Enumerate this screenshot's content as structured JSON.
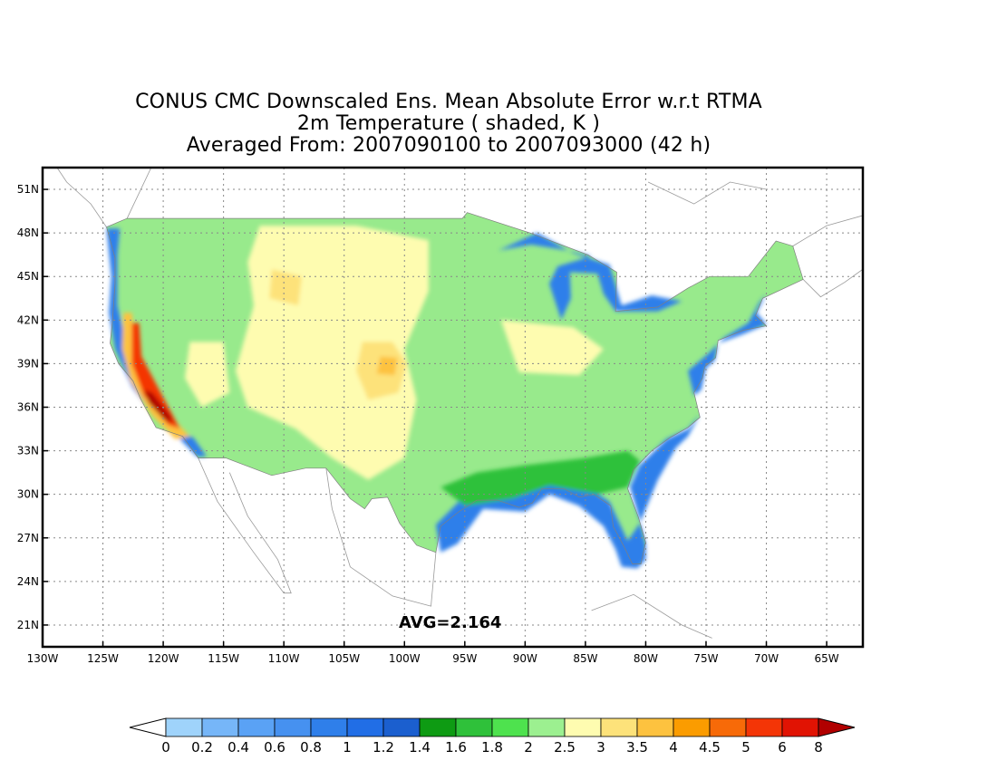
{
  "title": {
    "line1": "CONUS CMC Downscaled Ens. Mean Absolute Error w.r.t RTMA",
    "line2": "2m Temperature ( shaded, K )",
    "line3": "Averaged From: 2007090100 to 2007093000 (42 h)"
  },
  "annotation": {
    "avg_label": "AVG=2.164"
  },
  "axes": {
    "lon_range": [
      -130,
      -62
    ],
    "lat_range": [
      19.5,
      52.5
    ],
    "lon_ticks": [
      {
        "value": -130,
        "label": "130W"
      },
      {
        "value": -125,
        "label": "125W"
      },
      {
        "value": -120,
        "label": "120W"
      },
      {
        "value": -115,
        "label": "115W"
      },
      {
        "value": -110,
        "label": "110W"
      },
      {
        "value": -105,
        "label": "105W"
      },
      {
        "value": -100,
        "label": "100W"
      },
      {
        "value": -95,
        "label": "95W"
      },
      {
        "value": -90,
        "label": "90W"
      },
      {
        "value": -85,
        "label": "85W"
      },
      {
        "value": -80,
        "label": "80W"
      },
      {
        "value": -75,
        "label": "75W"
      },
      {
        "value": -70,
        "label": "70W"
      },
      {
        "value": -65,
        "label": "65W"
      }
    ],
    "lat_ticks": [
      {
        "value": 21,
        "label": "21N"
      },
      {
        "value": 24,
        "label": "24N"
      },
      {
        "value": 27,
        "label": "27N"
      },
      {
        "value": 30,
        "label": "30N"
      },
      {
        "value": 33,
        "label": "33N"
      },
      {
        "value": 36,
        "label": "36N"
      },
      {
        "value": 39,
        "label": "39N"
      },
      {
        "value": 42,
        "label": "42N"
      },
      {
        "value": 45,
        "label": "45N"
      },
      {
        "value": 48,
        "label": "48N"
      },
      {
        "value": 51,
        "label": "51N"
      }
    ],
    "grid": true
  },
  "colorbar": {
    "labels": [
      "0",
      "0.2",
      "0.4",
      "0.6",
      "0.8",
      "1",
      "1.2",
      "1.4",
      "1.6",
      "1.8",
      "2",
      "2.5",
      "3",
      "3.5",
      "4",
      "4.5",
      "5",
      "6",
      "8"
    ],
    "colors": [
      "#9fd3fb",
      "#76b6f8",
      "#5aa2f5",
      "#4691f0",
      "#2f7fea",
      "#216ee6",
      "#1b5fcf",
      "#0e9b13",
      "#2fc13a",
      "#4ee24e",
      "#9cf090",
      "#fefcb0",
      "#fde27a",
      "#fdc23f",
      "#fb9c00",
      "#f76a08",
      "#f43506",
      "#e11303",
      "#b10000"
    ],
    "under_color": "#ffffff",
    "over_color": "#b10000"
  },
  "map": {
    "land_fill": "#98ea8c",
    "regions": [
      {
        "name": "west-coast-blue",
        "color": "#2f7fea",
        "lonlat": [
          [
            -124.7,
            48.3
          ],
          [
            -123.6,
            48.3
          ],
          [
            -123.8,
            46.5
          ],
          [
            -123.8,
            43.0
          ],
          [
            -122.8,
            39.5
          ],
          [
            -121.4,
            36.4
          ],
          [
            -119.8,
            34.8
          ],
          [
            -117.5,
            33.9
          ],
          [
            -116.4,
            32.6
          ],
          [
            -117.2,
            32.6
          ],
          [
            -119.2,
            34.3
          ],
          [
            -121.0,
            35.6
          ],
          [
            -122.6,
            37.4
          ],
          [
            -124.0,
            40.0
          ],
          [
            -124.5,
            42.5
          ],
          [
            -124.3,
            45.0
          ],
          [
            -124.7,
            48.3
          ]
        ]
      },
      {
        "name": "gulf-blue",
        "color": "#2f7fea",
        "lonlat": [
          [
            -97.4,
            27.9
          ],
          [
            -97.0,
            26.0
          ],
          [
            -95.6,
            26.6
          ],
          [
            -93.5,
            29.0
          ],
          [
            -90.0,
            28.8
          ],
          [
            -88.0,
            30.0
          ],
          [
            -85.5,
            29.2
          ],
          [
            -83.5,
            27.8
          ],
          [
            -82.5,
            26.2
          ],
          [
            -82.0,
            25.0
          ],
          [
            -80.7,
            24.9
          ],
          [
            -80.0,
            25.5
          ],
          [
            -80.0,
            26.5
          ],
          [
            -80.6,
            28.5
          ],
          [
            -81.3,
            30.5
          ],
          [
            -80.5,
            32.0
          ],
          [
            -78.3,
            33.8
          ],
          [
            -76.5,
            34.5
          ],
          [
            -75.5,
            35.5
          ],
          [
            -76.5,
            34.0
          ],
          [
            -77.5,
            33.2
          ],
          [
            -79.0,
            31.0
          ],
          [
            -80.5,
            28.0
          ],
          [
            -81.5,
            26.8
          ],
          [
            -83.0,
            29.5
          ],
          [
            -84.5,
            30.3
          ],
          [
            -87.5,
            30.8
          ],
          [
            -90.0,
            30.5
          ],
          [
            -93.5,
            30.2
          ],
          [
            -95.5,
            29.5
          ],
          [
            -97.4,
            27.9
          ]
        ]
      },
      {
        "name": "southeast-dark-green",
        "color": "#2fc13a",
        "lonlat": [
          [
            -97.0,
            30.5
          ],
          [
            -94.0,
            31.5
          ],
          [
            -90.0,
            32.0
          ],
          [
            -85.0,
            32.5
          ],
          [
            -81.5,
            33.0
          ],
          [
            -80.5,
            32.3
          ],
          [
            -81.5,
            30.5
          ],
          [
            -84.0,
            30.0
          ],
          [
            -88.0,
            30.6
          ],
          [
            -91.0,
            29.7
          ],
          [
            -95.0,
            29.2
          ],
          [
            -97.0,
            30.5
          ]
        ]
      },
      {
        "name": "plains-yellow",
        "color": "#fefcb0",
        "lonlat": [
          [
            -112.0,
            48.5
          ],
          [
            -104.0,
            48.5
          ],
          [
            -98.0,
            47.5
          ],
          [
            -98.0,
            44.0
          ],
          [
            -100.0,
            40.0
          ],
          [
            -99.0,
            36.5
          ],
          [
            -100.0,
            32.5
          ],
          [
            -103.0,
            31.0
          ],
          [
            -106.0,
            32.5
          ],
          [
            -109.0,
            34.5
          ],
          [
            -113.0,
            36.0
          ],
          [
            -114.0,
            38.5
          ],
          [
            -112.5,
            43.0
          ],
          [
            -113.0,
            46.0
          ],
          [
            -112.0,
            48.5
          ]
        ]
      },
      {
        "name": "central-orange",
        "color": "#fde27a",
        "lonlat": [
          [
            -103.5,
            40.5
          ],
          [
            -101.0,
            40.5
          ],
          [
            -99.8,
            39.0
          ],
          [
            -100.5,
            37.0
          ],
          [
            -103.0,
            36.5
          ],
          [
            -104.0,
            38.5
          ],
          [
            -103.5,
            40.5
          ]
        ]
      },
      {
        "name": "central-hot",
        "color": "#fdc23f",
        "lonlat": [
          [
            -102.0,
            39.5
          ],
          [
            -100.6,
            39.4
          ],
          [
            -100.8,
            38.2
          ],
          [
            -102.3,
            38.3
          ],
          [
            -102.0,
            39.5
          ]
        ]
      },
      {
        "name": "midwest-yellow",
        "color": "#fefcb0",
        "lonlat": [
          [
            -92.0,
            42.0
          ],
          [
            -86.0,
            41.5
          ],
          [
            -83.5,
            40.0
          ],
          [
            -85.5,
            38.2
          ],
          [
            -90.5,
            38.4
          ],
          [
            -92.0,
            42.0
          ]
        ]
      },
      {
        "name": "idaho-orange",
        "color": "#fde27a",
        "lonlat": [
          [
            -111.0,
            45.5
          ],
          [
            -108.5,
            45.0
          ],
          [
            -108.8,
            43.0
          ],
          [
            -111.2,
            43.5
          ],
          [
            -111.0,
            45.5
          ]
        ]
      },
      {
        "name": "nevada-yellow",
        "color": "#fefcb0",
        "lonlat": [
          [
            -117.8,
            40.5
          ],
          [
            -115.0,
            40.5
          ],
          [
            -114.5,
            37.0
          ],
          [
            -116.8,
            36.0
          ],
          [
            -118.2,
            38.0
          ],
          [
            -117.8,
            40.5
          ]
        ]
      },
      {
        "name": "socal-orange",
        "color": "#fdc23f",
        "lonlat": [
          [
            -123.3,
            42.5
          ],
          [
            -122.6,
            42.5
          ],
          [
            -122.3,
            39.5
          ],
          [
            -119.2,
            35.2
          ],
          [
            -117.8,
            34.0
          ],
          [
            -119.0,
            33.8
          ],
          [
            -121.0,
            35.5
          ],
          [
            -122.7,
            37.8
          ],
          [
            -123.4,
            40.0
          ],
          [
            -123.3,
            42.5
          ]
        ]
      },
      {
        "name": "socal-red-outer",
        "color": "#f43506",
        "lonlat": [
          [
            -122.6,
            41.8
          ],
          [
            -122.0,
            41.8
          ],
          [
            -121.8,
            39.5
          ],
          [
            -119.0,
            35.1
          ],
          [
            -118.6,
            34.5
          ],
          [
            -119.6,
            34.8
          ],
          [
            -121.6,
            36.8
          ],
          [
            -122.6,
            39.0
          ],
          [
            -122.6,
            41.8
          ]
        ]
      },
      {
        "name": "socal-red-inner",
        "color": "#b10000",
        "lonlat": [
          [
            -121.6,
            37.2
          ],
          [
            -120.9,
            37.0
          ],
          [
            -119.4,
            35.4
          ],
          [
            -119.3,
            34.9
          ],
          [
            -120.0,
            35.2
          ],
          [
            -121.2,
            36.3
          ],
          [
            -121.6,
            37.2
          ]
        ]
      },
      {
        "name": "great-lakes-blue",
        "color": "#2f7fea",
        "lonlat": [
          [
            -92.2,
            46.8
          ],
          [
            -89.5,
            47.2
          ],
          [
            -86.5,
            46.8
          ],
          [
            -84.5,
            46.4
          ],
          [
            -87.3,
            45.7
          ],
          [
            -88.0,
            44.5
          ],
          [
            -87.0,
            42.0
          ],
          [
            -86.2,
            43.5
          ],
          [
            -86.3,
            45.3
          ],
          [
            -84.0,
            45.2
          ],
          [
            -83.5,
            43.8
          ],
          [
            -82.5,
            42.6
          ],
          [
            -79.0,
            42.6
          ],
          [
            -77.0,
            43.3
          ],
          [
            -79.5,
            43.7
          ],
          [
            -82.0,
            43.0
          ],
          [
            -83.0,
            45.8
          ],
          [
            -86.0,
            46.6
          ],
          [
            -89.0,
            48.0
          ],
          [
            -92.2,
            46.8
          ]
        ]
      },
      {
        "name": "northeast-coast-blue",
        "color": "#2f7fea",
        "lonlat": [
          [
            -70.0,
            43.8
          ],
          [
            -70.8,
            42.5
          ],
          [
            -70.0,
            41.7
          ],
          [
            -72.0,
            41.0
          ],
          [
            -74.0,
            40.4
          ],
          [
            -74.3,
            39.2
          ],
          [
            -75.0,
            38.7
          ],
          [
            -75.4,
            37.2
          ],
          [
            -76.0,
            36.8
          ],
          [
            -76.5,
            38.5
          ],
          [
            -74.8,
            39.7
          ],
          [
            -73.5,
            40.8
          ],
          [
            -71.5,
            41.8
          ],
          [
            -70.6,
            43.2
          ],
          [
            -70.0,
            43.8
          ]
        ]
      }
    ]
  }
}
